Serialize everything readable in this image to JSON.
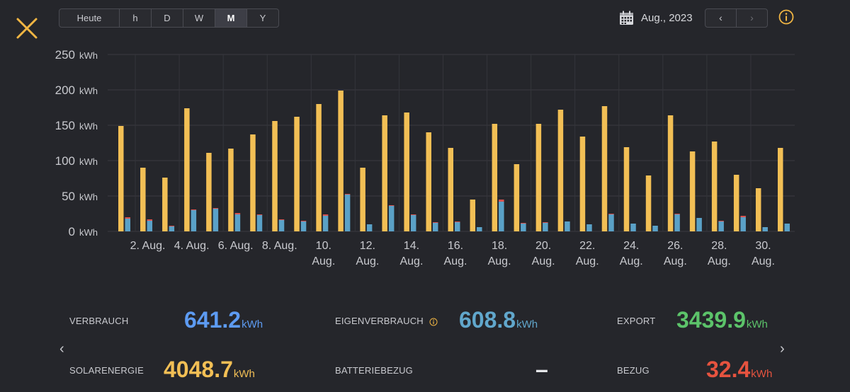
{
  "range_tabs": [
    {
      "label": "Heute",
      "active": false
    },
    {
      "label": "h",
      "active": false
    },
    {
      "label": "D",
      "active": false
    },
    {
      "label": "W",
      "active": false
    },
    {
      "label": "M",
      "active": true
    },
    {
      "label": "Y",
      "active": false
    }
  ],
  "header": {
    "date_label": "Aug., 2023",
    "prev_symbol": "‹",
    "next_symbol": "›"
  },
  "icons": {
    "close": "close-icon",
    "calendar": "calendar-icon",
    "info": "info-icon"
  },
  "colors": {
    "background": "#25262b",
    "solar": "#f2bf55",
    "consumption": "#5aa1c7",
    "grid_import": "#d9534f",
    "accent": "#f0b543",
    "consumption_blue": "#5d9bf2",
    "self_consumption": "#61a7cc",
    "export_green": "#5cc36a",
    "import_red": "#e6533f"
  },
  "chart_data": {
    "type": "bar",
    "unit": "kWh",
    "ylim": [
      0,
      250
    ],
    "yticks": [
      0,
      50,
      100,
      150,
      200,
      250
    ],
    "ytick_labels": [
      "0",
      "50",
      "100",
      "150",
      "200",
      "250"
    ],
    "days": [
      1,
      2,
      3,
      4,
      5,
      6,
      7,
      8,
      9,
      10,
      11,
      12,
      13,
      14,
      15,
      16,
      17,
      18,
      19,
      20,
      21,
      22,
      23,
      24,
      25,
      26,
      27,
      28,
      29,
      30,
      31
    ],
    "x_tick_labels": [
      {
        "day": 2,
        "lines": [
          "2. Aug."
        ]
      },
      {
        "day": 4,
        "lines": [
          "4. Aug."
        ]
      },
      {
        "day": 6,
        "lines": [
          "6. Aug."
        ]
      },
      {
        "day": 8,
        "lines": [
          "8. Aug."
        ]
      },
      {
        "day": 10,
        "lines": [
          "10.",
          "Aug."
        ]
      },
      {
        "day": 12,
        "lines": [
          "12.",
          "Aug."
        ]
      },
      {
        "day": 14,
        "lines": [
          "14.",
          "Aug."
        ]
      },
      {
        "day": 16,
        "lines": [
          "16.",
          "Aug."
        ]
      },
      {
        "day": 18,
        "lines": [
          "18.",
          "Aug."
        ]
      },
      {
        "day": 20,
        "lines": [
          "20.",
          "Aug."
        ]
      },
      {
        "day": 22,
        "lines": [
          "22.",
          "Aug."
        ]
      },
      {
        "day": 24,
        "lines": [
          "24.",
          "Aug."
        ]
      },
      {
        "day": 26,
        "lines": [
          "26.",
          "Aug."
        ]
      },
      {
        "day": 28,
        "lines": [
          "28.",
          "Aug."
        ]
      },
      {
        "day": 30,
        "lines": [
          "30.",
          "Aug."
        ]
      }
    ],
    "series": [
      {
        "key": "solar",
        "values": [
          149,
          90,
          76,
          174,
          111,
          117,
          137,
          156,
          162,
          180,
          199,
          90,
          164,
          168,
          140,
          118,
          45,
          152,
          95,
          152,
          172,
          134,
          177,
          119,
          79,
          164,
          113,
          127,
          80,
          61,
          118
        ]
      },
      {
        "key": "self_consumption",
        "values": [
          18,
          15,
          7,
          30,
          32,
          24,
          23,
          16,
          14,
          22,
          52,
          10,
          36,
          23,
          12,
          13,
          6,
          42,
          11,
          12,
          14,
          10,
          24,
          11,
          8,
          24,
          19,
          14,
          20,
          6,
          11
        ]
      },
      {
        "key": "grid_import",
        "values": [
          2,
          2,
          1,
          1,
          1,
          2,
          1,
          1,
          1,
          2,
          1,
          0,
          1,
          1,
          1,
          1,
          0,
          3,
          1,
          1,
          0,
          0,
          1,
          0,
          0,
          1,
          0,
          1,
          2,
          0,
          0
        ]
      }
    ]
  },
  "stats": {
    "verbrauch": {
      "label": "VERBRAUCH",
      "value": "641.2",
      "unit": "kWh"
    },
    "eigenverbrauch": {
      "label": "EIGENVERBRAUCH",
      "value": "608.8",
      "unit": "kWh"
    },
    "export": {
      "label": "EXPORT",
      "value": "3439.9",
      "unit": "kWh"
    },
    "solarenergie": {
      "label": "SOLARENERGIE",
      "value": "4048.7",
      "unit": "kWh"
    },
    "batteriebezug": {
      "label": "BATTERIEBEZUG",
      "value": "–"
    },
    "bezug": {
      "label": "BEZUG",
      "value": "32.4",
      "unit": "kWh"
    }
  },
  "nav": {
    "left_arrow": "‹",
    "right_arrow": "›"
  }
}
